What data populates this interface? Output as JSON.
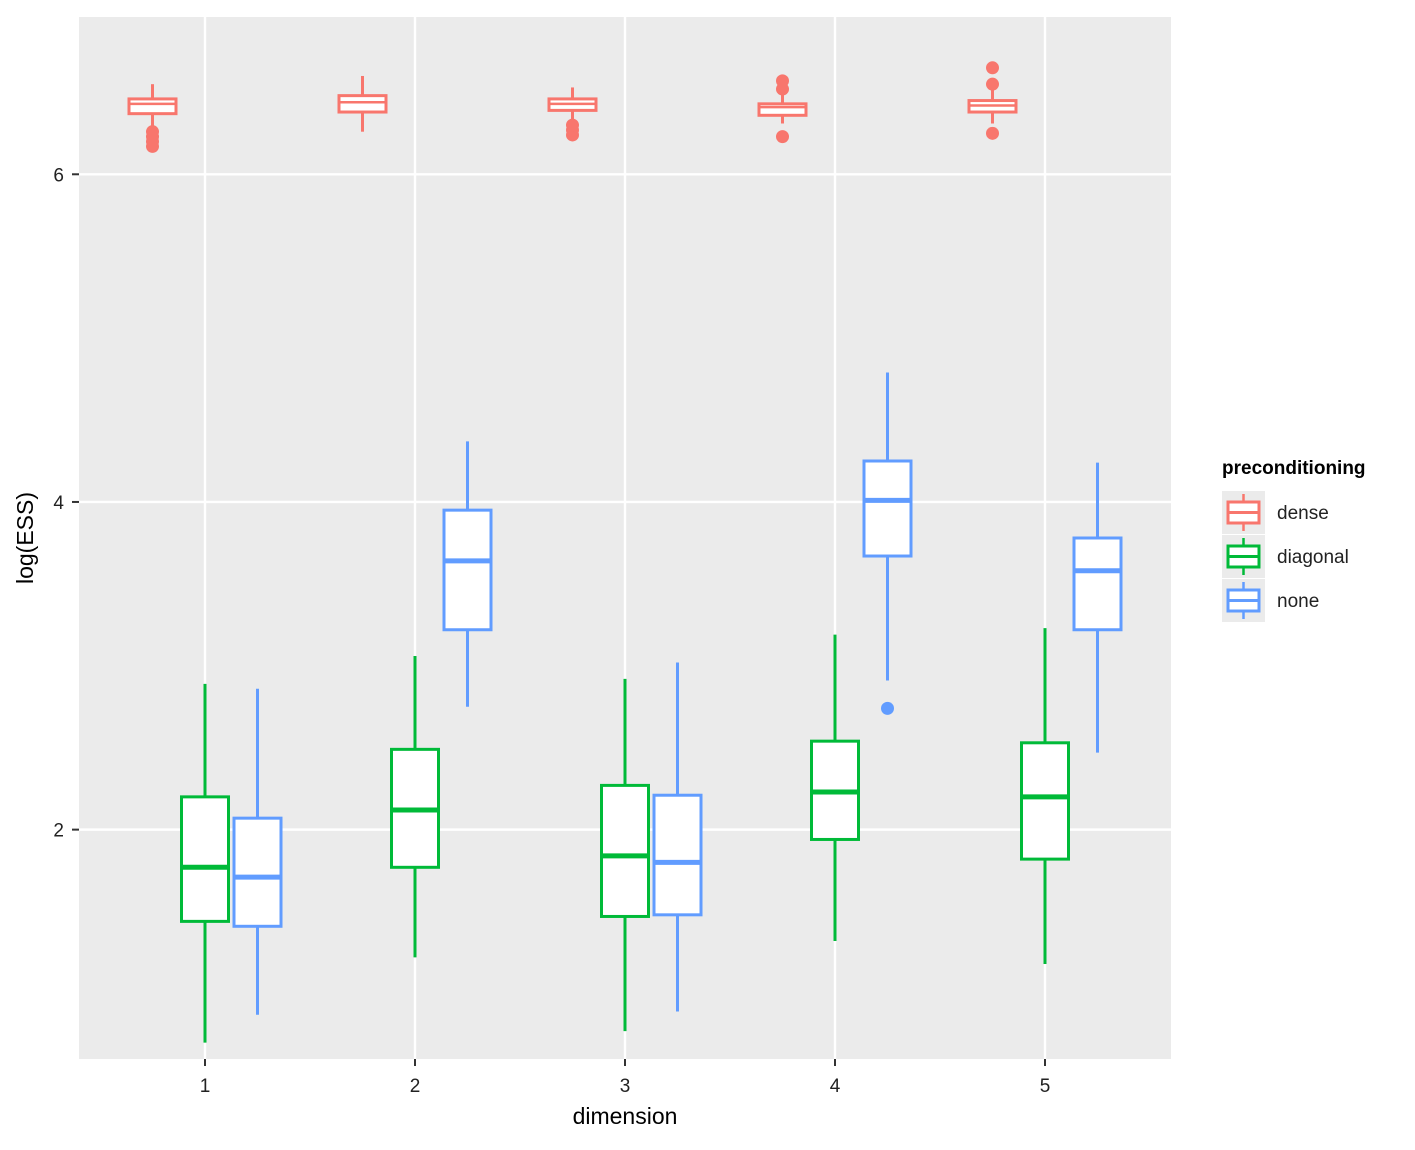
{
  "chart_data": {
    "type": "boxplot",
    "title": "",
    "xlabel": "dimension",
    "ylabel": "log(ESS)",
    "categories": [
      "1",
      "2",
      "3",
      "4",
      "5"
    ],
    "ylim": [
      0.6,
      6.96
    ],
    "yticks": [
      2,
      4,
      6
    ],
    "legend_title": "preconditioning",
    "legend_position": "right",
    "series": [
      {
        "name": "dense",
        "color": "#F8766D",
        "boxes": [
          {
            "category": "1",
            "whisker_low": 6.29,
            "q1": 6.37,
            "median": 6.43,
            "q3": 6.46,
            "whisker_high": 6.55,
            "outliers": [
              6.17,
              6.2,
              6.23,
              6.26
            ]
          },
          {
            "category": "2",
            "whisker_low": 6.26,
            "q1": 6.38,
            "median": 6.44,
            "q3": 6.48,
            "whisker_high": 6.6,
            "outliers": []
          },
          {
            "category": "3",
            "whisker_low": 6.33,
            "q1": 6.39,
            "median": 6.43,
            "q3": 6.46,
            "whisker_high": 6.53,
            "outliers": [
              6.24,
              6.27,
              6.3
            ]
          },
          {
            "category": "4",
            "whisker_low": 6.31,
            "q1": 6.36,
            "median": 6.41,
            "q3": 6.43,
            "whisker_high": 6.49,
            "outliers": [
              6.23,
              6.52,
              6.57
            ]
          },
          {
            "category": "5",
            "whisker_low": 6.31,
            "q1": 6.38,
            "median": 6.42,
            "q3": 6.45,
            "whisker_high": 6.53,
            "outliers": [
              6.25,
              6.55,
              6.65
            ]
          }
        ]
      },
      {
        "name": "diagonal",
        "color": "#00BA38",
        "boxes": [
          {
            "category": "1",
            "whisker_low": 0.7,
            "q1": 1.44,
            "median": 1.77,
            "q3": 2.2,
            "whisker_high": 2.89,
            "outliers": []
          },
          {
            "category": "2",
            "whisker_low": 1.22,
            "q1": 1.77,
            "median": 2.12,
            "q3": 2.49,
            "whisker_high": 3.06,
            "outliers": []
          },
          {
            "category": "3",
            "whisker_low": 0.77,
            "q1": 1.47,
            "median": 1.84,
            "q3": 2.27,
            "whisker_high": 2.92,
            "outliers": []
          },
          {
            "category": "4",
            "whisker_low": 1.32,
            "q1": 1.94,
            "median": 2.23,
            "q3": 2.54,
            "whisker_high": 3.19,
            "outliers": []
          },
          {
            "category": "5",
            "whisker_low": 1.18,
            "q1": 1.82,
            "median": 2.2,
            "q3": 2.53,
            "whisker_high": 3.23,
            "outliers": []
          }
        ]
      },
      {
        "name": "none",
        "color": "#619CFF",
        "boxes": [
          {
            "category": "1",
            "whisker_low": 0.87,
            "q1": 1.41,
            "median": 1.71,
            "q3": 2.07,
            "whisker_high": 2.86,
            "outliers": []
          },
          {
            "category": "2",
            "whisker_low": 2.75,
            "q1": 3.22,
            "median": 3.64,
            "q3": 3.95,
            "whisker_high": 4.37,
            "outliers": []
          },
          {
            "category": "3",
            "whisker_low": 0.89,
            "q1": 1.48,
            "median": 1.8,
            "q3": 2.21,
            "whisker_high": 3.02,
            "outliers": []
          },
          {
            "category": "4",
            "whisker_low": 2.91,
            "q1": 3.67,
            "median": 4.01,
            "q3": 4.25,
            "whisker_high": 4.79,
            "outliers": [
              2.74
            ]
          },
          {
            "category": "5",
            "whisker_low": 2.47,
            "q1": 3.22,
            "median": 3.58,
            "q3": 3.78,
            "whisker_high": 4.24,
            "outliers": []
          }
        ]
      }
    ]
  }
}
